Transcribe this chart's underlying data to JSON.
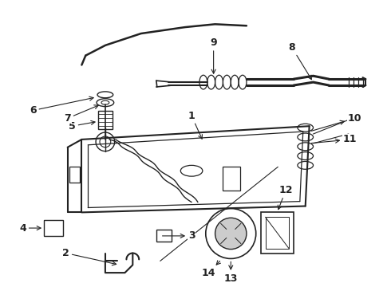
{
  "bg_color": "#ffffff",
  "line_color": "#222222",
  "label_color": "#000000",
  "fig_width": 4.9,
  "fig_height": 3.6,
  "dpi": 100,
  "label_fontsize": 9,
  "lw": 1.0
}
